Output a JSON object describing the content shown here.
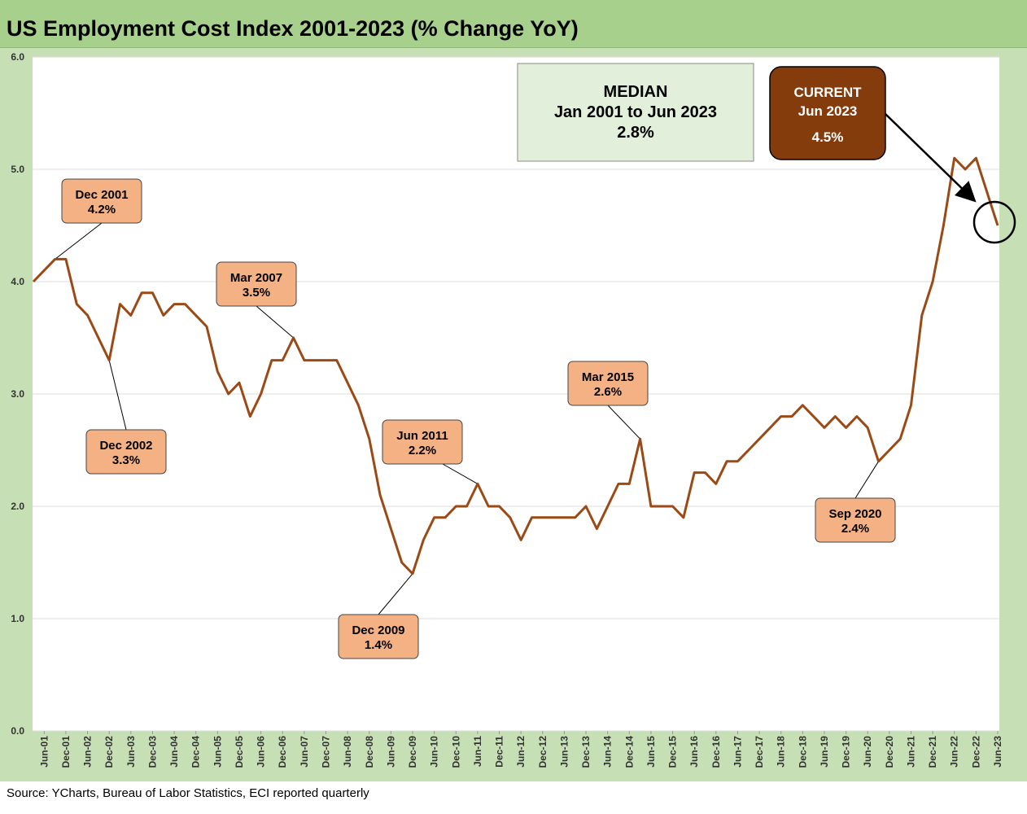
{
  "title": "US Employment Cost Index 2001-2023 (% Change YoY)",
  "source": "Source: YCharts, Bureau of Labor Statistics, ECI reported quarterly",
  "colors": {
    "line": "#9b4a15",
    "frame": "#c6dfb4",
    "title_bar": "#a8d08d",
    "callout_fill": "#f4b183",
    "median_fill": "#e2efda",
    "current_fill": "#843c0c"
  },
  "median_box": {
    "line1": "MEDIAN",
    "line2": "Jan 2001 to Jun 2023",
    "line3": "2.8%"
  },
  "current_box": {
    "line1": "CURRENT",
    "line2": "Jun 2023",
    "line3": "4.5%"
  },
  "chart_data": {
    "type": "line",
    "ylim": [
      0,
      6
    ],
    "yticks": [
      "0.0",
      "1.0",
      "2.0",
      "3.0",
      "4.0",
      "5.0",
      "6.0"
    ],
    "grid": "horizontal",
    "xtick_labels": [
      "Jun-01",
      "Dec-01",
      "Jun-02",
      "Dec-02",
      "Jun-03",
      "Dec-03",
      "Jun-04",
      "Dec-04",
      "Jun-05",
      "Dec-05",
      "Jun-06",
      "Dec-06",
      "Jun-07",
      "Dec-07",
      "Jun-08",
      "Dec-08",
      "Jun-09",
      "Dec-09",
      "Jun-10",
      "Dec-10",
      "Jun-11",
      "Dec-11",
      "Jun-12",
      "Dec-12",
      "Jun-13",
      "Dec-13",
      "Jun-14",
      "Dec-14",
      "Jun-15",
      "Dec-15",
      "Jun-16",
      "Dec-16",
      "Jun-17",
      "Dec-17",
      "Jun-18",
      "Dec-18",
      "Jun-19",
      "Dec-19",
      "Jun-20",
      "Dec-20",
      "Jun-21",
      "Dec-21",
      "Jun-22",
      "Dec-22",
      "Jun-23"
    ],
    "x": [
      "Mar-01",
      "Jun-01",
      "Sep-01",
      "Dec-01",
      "Mar-02",
      "Jun-02",
      "Sep-02",
      "Dec-02",
      "Mar-03",
      "Jun-03",
      "Sep-03",
      "Dec-03",
      "Mar-04",
      "Jun-04",
      "Sep-04",
      "Dec-04",
      "Mar-05",
      "Jun-05",
      "Sep-05",
      "Dec-05",
      "Mar-06",
      "Jun-06",
      "Sep-06",
      "Dec-06",
      "Mar-07",
      "Jun-07",
      "Sep-07",
      "Dec-07",
      "Mar-08",
      "Jun-08",
      "Sep-08",
      "Dec-08",
      "Mar-09",
      "Jun-09",
      "Sep-09",
      "Dec-09",
      "Mar-10",
      "Jun-10",
      "Sep-10",
      "Dec-10",
      "Mar-11",
      "Jun-11",
      "Sep-11",
      "Dec-11",
      "Mar-12",
      "Jun-12",
      "Sep-12",
      "Dec-12",
      "Mar-13",
      "Jun-13",
      "Sep-13",
      "Dec-13",
      "Mar-14",
      "Jun-14",
      "Sep-14",
      "Dec-14",
      "Mar-15",
      "Jun-15",
      "Sep-15",
      "Dec-15",
      "Mar-16",
      "Jun-16",
      "Sep-16",
      "Dec-16",
      "Mar-17",
      "Jun-17",
      "Sep-17",
      "Dec-17",
      "Mar-18",
      "Jun-18",
      "Sep-18",
      "Dec-18",
      "Mar-19",
      "Jun-19",
      "Sep-19",
      "Dec-19",
      "Mar-20",
      "Jun-20",
      "Sep-20",
      "Dec-20",
      "Mar-21",
      "Jun-21",
      "Sep-21",
      "Dec-21",
      "Mar-22",
      "Jun-22",
      "Sep-22",
      "Dec-22",
      "Mar-23",
      "Jun-23"
    ],
    "values": [
      4.0,
      4.1,
      4.2,
      4.2,
      3.8,
      3.7,
      3.5,
      3.3,
      3.8,
      3.7,
      3.9,
      3.9,
      3.7,
      3.8,
      3.8,
      3.7,
      3.6,
      3.2,
      3.0,
      3.1,
      2.8,
      3.0,
      3.3,
      3.3,
      3.5,
      3.3,
      3.3,
      3.3,
      3.3,
      3.1,
      2.9,
      2.6,
      2.1,
      1.8,
      1.5,
      1.4,
      1.7,
      1.9,
      1.9,
      2.0,
      2.0,
      2.2,
      2.0,
      2.0,
      1.9,
      1.7,
      1.9,
      1.9,
      1.9,
      1.9,
      1.9,
      2.0,
      1.8,
      2.0,
      2.2,
      2.2,
      2.6,
      2.0,
      2.0,
      2.0,
      1.9,
      2.3,
      2.3,
      2.2,
      2.4,
      2.4,
      2.5,
      2.6,
      2.7,
      2.8,
      2.8,
      2.9,
      2.8,
      2.7,
      2.8,
      2.7,
      2.8,
      2.7,
      2.4,
      2.5,
      2.6,
      2.9,
      3.7,
      4.0,
      4.5,
      5.1,
      5.0,
      5.1,
      4.8,
      4.5
    ],
    "annotations": [
      {
        "label": "Dec 2001",
        "value": "4.2%",
        "point_index": 2
      },
      {
        "label": "Dec 2002",
        "value": "3.3%",
        "point_index": 7
      },
      {
        "label": "Mar 2007",
        "value": "3.5%",
        "point_index": 24
      },
      {
        "label": "Dec 2009",
        "value": "1.4%",
        "point_index": 35
      },
      {
        "label": "Jun 2011",
        "value": "2.2%",
        "point_index": 41
      },
      {
        "label": "Mar 2015",
        "value": "2.6%",
        "point_index": 56
      },
      {
        "label": "Sep 2020",
        "value": "2.4%",
        "point_index": 78
      }
    ]
  }
}
